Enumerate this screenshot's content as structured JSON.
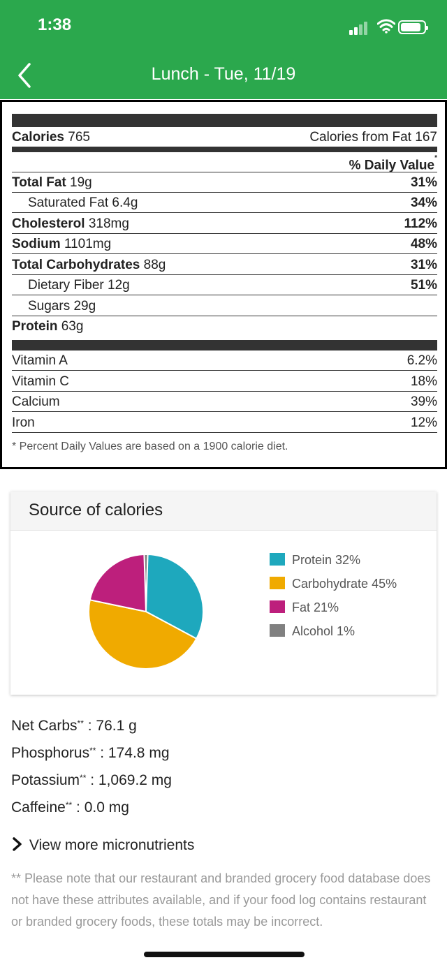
{
  "status": {
    "time": "1:38"
  },
  "nav": {
    "title": "Lunch - Tue, 11/19"
  },
  "nutrition": {
    "calories_label": "Calories",
    "calories_value": "765",
    "calories_from_fat": "Calories from Fat 167",
    "daily_value_header": "% Daily Value",
    "daily_value_marker": "*",
    "rows": [
      {
        "label": "Total Fat",
        "value": "19g",
        "pct": "31%"
      },
      {
        "label": "Saturated Fat",
        "value": "6.4g",
        "pct": "34%"
      },
      {
        "label": "Cholesterol",
        "value": "318mg",
        "pct": "112%"
      },
      {
        "label": "Sodium",
        "value": "1101mg",
        "pct": "48%"
      },
      {
        "label": "Total Carbohydrates",
        "value": "88g",
        "pct": "31%"
      },
      {
        "label": "Dietary Fiber",
        "value": "12g",
        "pct": "51%"
      },
      {
        "label": "Sugars",
        "value": "29g",
        "pct": ""
      },
      {
        "label": "Protein",
        "value": "63g",
        "pct": ""
      }
    ],
    "vitamins": [
      {
        "label": "Vitamin A",
        "pct": "6.2%"
      },
      {
        "label": "Vitamin C",
        "pct": "18%"
      },
      {
        "label": "Calcium",
        "pct": "39%"
      },
      {
        "label": "Iron",
        "pct": "12%"
      }
    ],
    "footnote": "* Percent Daily Values are based on a 1900 calorie diet."
  },
  "source_card": {
    "title": "Source of calories",
    "legend": [
      {
        "label": "Protein 32%",
        "color": "#1ea8bd"
      },
      {
        "label": "Carbohydrate 45%",
        "color": "#f0aa00"
      },
      {
        "label": "Fat 21%",
        "color": "#bd1f7c"
      },
      {
        "label": "Alcohol 1%",
        "color": "#808080"
      }
    ]
  },
  "chart_data": {
    "type": "pie",
    "title": "Source of calories",
    "categories": [
      "Protein",
      "Carbohydrate",
      "Fat",
      "Alcohol"
    ],
    "values": [
      32,
      45,
      21,
      1
    ],
    "colors": [
      "#1ea8bd",
      "#f0aa00",
      "#bd1f7c",
      "#808080"
    ],
    "legend_position": "right"
  },
  "extras": [
    {
      "label": "Net Carbs",
      "stars": "**",
      "value": ": 76.1 g"
    },
    {
      "label": "Phosphorus",
      "stars": "**",
      "value": ": 174.8 mg"
    },
    {
      "label": "Potassium",
      "stars": "**",
      "value": ": 1,069.2 mg"
    },
    {
      "label": "Caffeine",
      "stars": "**",
      "value": ": 0.0 mg"
    }
  ],
  "view_more": {
    "label": "View more micronutrients"
  },
  "disclaimer": "** Please note that our restaurant and branded grocery food database does not have these attributes available, and if your food log contains restaurant or branded grocery foods, these totals may be incorrect."
}
